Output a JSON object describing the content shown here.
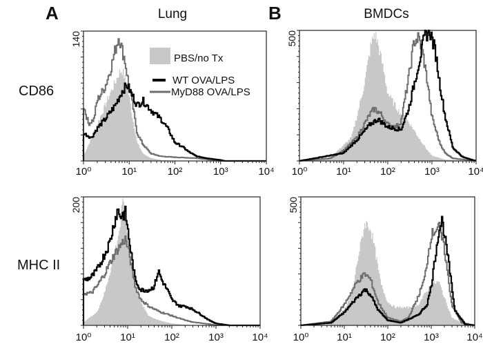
{
  "figure": {
    "panel_labels": [
      "A",
      "B"
    ],
    "column_titles": [
      "Lung",
      "BMDCs"
    ],
    "row_labels": [
      "CD86",
      "MHC II"
    ],
    "legend": [
      {
        "label": "PBS/no Tx",
        "style": "fill",
        "color": "#c8c8c8"
      },
      {
        "label": "WT OVA/LPS",
        "style": "line",
        "color": "#000000"
      },
      {
        "label": "MyD88 OVA/LPS",
        "style": "line",
        "color": "#6e6e6e"
      }
    ]
  },
  "chart_data": [
    {
      "type": "area",
      "panel": "A",
      "row": "CD86",
      "title": "Lung",
      "x_scale": "log",
      "xlim": [
        1,
        10000
      ],
      "x_tick_labels": [
        "10⁰",
        "10¹",
        "10²",
        "10³",
        "10⁴"
      ],
      "ylim": [
        0,
        140
      ],
      "y_tick_label": "140",
      "series": [
        {
          "name": "PBS/no Tx",
          "points": [
            [
              1,
              5
            ],
            [
              1.5,
              25
            ],
            [
              2,
              40
            ],
            [
              3,
              60
            ],
            [
              4,
              75
            ],
            [
              5,
              85
            ],
            [
              6,
              95
            ],
            [
              7,
              98
            ],
            [
              8,
              90
            ],
            [
              10,
              70
            ],
            [
              12,
              45
            ],
            [
              15,
              20
            ],
            [
              20,
              8
            ],
            [
              30,
              3
            ],
            [
              50,
              1
            ],
            [
              100,
              0
            ],
            [
              10000,
              0
            ]
          ]
        },
        {
          "name": "WT OVA/LPS",
          "points": [
            [
              1,
              30
            ],
            [
              1.5,
              25
            ],
            [
              2,
              35
            ],
            [
              3,
              45
            ],
            [
              5,
              60
            ],
            [
              7,
              75
            ],
            [
              9,
              82
            ],
            [
              12,
              70
            ],
            [
              15,
              60
            ],
            [
              20,
              65
            ],
            [
              30,
              55
            ],
            [
              50,
              45
            ],
            [
              70,
              35
            ],
            [
              100,
              20
            ],
            [
              150,
              15
            ],
            [
              200,
              10
            ],
            [
              300,
              5
            ],
            [
              500,
              3
            ],
            [
              1000,
              1
            ],
            [
              1200,
              0
            ],
            [
              10000,
              0
            ]
          ]
        },
        {
          "name": "MyD88 OVA/LPS",
          "points": [
            [
              1,
              60
            ],
            [
              1.3,
              40
            ],
            [
              1.7,
              45
            ],
            [
              2,
              65
            ],
            [
              3,
              80
            ],
            [
              4,
              100
            ],
            [
              5,
              120
            ],
            [
              6,
              135
            ],
            [
              7,
              120
            ],
            [
              8,
              110
            ],
            [
              10,
              80
            ],
            [
              12,
              60
            ],
            [
              15,
              30
            ],
            [
              20,
              18
            ],
            [
              30,
              8
            ],
            [
              50,
              5
            ],
            [
              100,
              4
            ],
            [
              300,
              3
            ],
            [
              1000,
              0
            ],
            [
              10000,
              0
            ]
          ]
        }
      ]
    },
    {
      "type": "area",
      "panel": "B",
      "row": "CD86",
      "title": "BMDCs",
      "x_scale": "log",
      "xlim": [
        1,
        10000
      ],
      "x_tick_labels": [
        "10⁰",
        "10¹",
        "10²",
        "10³",
        "10⁴"
      ],
      "ylim": [
        0,
        500
      ],
      "y_tick_label": "500",
      "series": [
        {
          "name": "PBS/no Tx",
          "points": [
            [
              1,
              0
            ],
            [
              3,
              5
            ],
            [
              5,
              15
            ],
            [
              10,
              60
            ],
            [
              15,
              90
            ],
            [
              20,
              170
            ],
            [
              30,
              300
            ],
            [
              40,
              430
            ],
            [
              50,
              490
            ],
            [
              60,
              450
            ],
            [
              80,
              350
            ],
            [
              100,
              260
            ],
            [
              150,
              210
            ],
            [
              200,
              180
            ],
            [
              300,
              150
            ],
            [
              500,
              90
            ],
            [
              800,
              40
            ],
            [
              1000,
              20
            ],
            [
              2000,
              5
            ],
            [
              10000,
              0
            ]
          ]
        },
        {
          "name": "WT OVA/LPS",
          "points": [
            [
              1,
              0
            ],
            [
              10,
              30
            ],
            [
              20,
              80
            ],
            [
              40,
              140
            ],
            [
              60,
              160
            ],
            [
              100,
              130
            ],
            [
              200,
              120
            ],
            [
              300,
              200
            ],
            [
              500,
              370
            ],
            [
              700,
              480
            ],
            [
              900,
              500
            ],
            [
              1200,
              420
            ],
            [
              1500,
              300
            ],
            [
              2000,
              170
            ],
            [
              3000,
              50
            ],
            [
              5000,
              15
            ],
            [
              10000,
              0
            ]
          ]
        },
        {
          "name": "MyD88 OVA/LPS",
          "points": [
            [
              1,
              0
            ],
            [
              5,
              10
            ],
            [
              10,
              40
            ],
            [
              20,
              90
            ],
            [
              40,
              180
            ],
            [
              50,
              200
            ],
            [
              70,
              180
            ],
            [
              100,
              140
            ],
            [
              150,
              130
            ],
            [
              200,
              150
            ],
            [
              300,
              320
            ],
            [
              400,
              460
            ],
            [
              500,
              470
            ],
            [
              600,
              430
            ],
            [
              800,
              300
            ],
            [
              1000,
              170
            ],
            [
              1500,
              70
            ],
            [
              2000,
              30
            ],
            [
              3000,
              10
            ],
            [
              10000,
              0
            ]
          ]
        }
      ]
    },
    {
      "type": "area",
      "panel": "A",
      "row": "MHC II",
      "title": "Lung",
      "x_scale": "log",
      "xlim": [
        1,
        10000
      ],
      "x_tick_labels": [
        "10⁰",
        "10¹",
        "10²",
        "10³",
        "10⁴"
      ],
      "ylim": [
        0,
        200
      ],
      "y_tick_label": "200",
      "series": [
        {
          "name": "PBS/no Tx",
          "points": [
            [
              1,
              5
            ],
            [
              2,
              20
            ],
            [
              3,
              50
            ],
            [
              5,
              110
            ],
            [
              7,
              160
            ],
            [
              8,
              200
            ],
            [
              10,
              140
            ],
            [
              12,
              100
            ],
            [
              15,
              60
            ],
            [
              20,
              35
            ],
            [
              30,
              15
            ],
            [
              50,
              8
            ],
            [
              100,
              3
            ],
            [
              300,
              0
            ],
            [
              10000,
              0
            ]
          ]
        },
        {
          "name": "WT OVA/LPS",
          "points": [
            [
              1,
              70
            ],
            [
              1.5,
              75
            ],
            [
              2,
              85
            ],
            [
              3,
              110
            ],
            [
              4,
              130
            ],
            [
              5,
              160
            ],
            [
              6,
              180
            ],
            [
              7,
              170
            ],
            [
              9,
              175
            ],
            [
              11,
              130
            ],
            [
              15,
              70
            ],
            [
              20,
              55
            ],
            [
              30,
              55
            ],
            [
              40,
              60
            ],
            [
              50,
              85
            ],
            [
              60,
              70
            ],
            [
              80,
              55
            ],
            [
              100,
              40
            ],
            [
              150,
              30
            ],
            [
              200,
              30
            ],
            [
              300,
              25
            ],
            [
              500,
              15
            ],
            [
              700,
              8
            ],
            [
              1000,
              3
            ],
            [
              2000,
              0
            ],
            [
              10000,
              0
            ]
          ]
        },
        {
          "name": "MyD88 OVA/LPS",
          "points": [
            [
              1,
              50
            ],
            [
              1.5,
              50
            ],
            [
              2,
              60
            ],
            [
              3,
              80
            ],
            [
              5,
              110
            ],
            [
              7,
              125
            ],
            [
              9,
              135
            ],
            [
              11,
              110
            ],
            [
              15,
              60
            ],
            [
              20,
              40
            ],
            [
              30,
              30
            ],
            [
              50,
              22
            ],
            [
              100,
              15
            ],
            [
              200,
              8
            ],
            [
              300,
              5
            ],
            [
              700,
              2
            ],
            [
              1000,
              0
            ],
            [
              10000,
              0
            ]
          ]
        }
      ]
    },
    {
      "type": "area",
      "panel": "B",
      "row": "MHC II",
      "title": "BMDCs",
      "x_scale": "log",
      "xlim": [
        1,
        10000
      ],
      "x_tick_labels": [
        "10⁰",
        "10¹",
        "10²",
        "10³",
        "10⁴"
      ],
      "ylim": [
        0,
        500
      ],
      "y_tick_label": "500",
      "series": [
        {
          "name": "PBS/no Tx",
          "points": [
            [
              1,
              0
            ],
            [
              3,
              5
            ],
            [
              5,
              20
            ],
            [
              10,
              60
            ],
            [
              15,
              120
            ],
            [
              20,
              250
            ],
            [
              30,
              400
            ],
            [
              40,
              380
            ],
            [
              50,
              300
            ],
            [
              70,
              160
            ],
            [
              100,
              90
            ],
            [
              150,
              70
            ],
            [
              200,
              70
            ],
            [
              300,
              70
            ],
            [
              500,
              80
            ],
            [
              700,
              120
            ],
            [
              1000,
              160
            ],
            [
              1500,
              170
            ],
            [
              2000,
              110
            ],
            [
              3000,
              30
            ],
            [
              5000,
              10
            ],
            [
              10000,
              0
            ]
          ]
        },
        {
          "name": "WT OVA/LPS",
          "points": [
            [
              1,
              0
            ],
            [
              5,
              10
            ],
            [
              10,
              50
            ],
            [
              20,
              110
            ],
            [
              30,
              140
            ],
            [
              40,
              120
            ],
            [
              60,
              60
            ],
            [
              100,
              20
            ],
            [
              200,
              10
            ],
            [
              500,
              40
            ],
            [
              800,
              80
            ],
            [
              1000,
              150
            ],
            [
              1500,
              370
            ],
            [
              1800,
              410
            ],
            [
              2500,
              250
            ],
            [
              3500,
              60
            ],
            [
              6000,
              5
            ],
            [
              10000,
              0
            ]
          ]
        },
        {
          "name": "MyD88 OVA/LPS",
          "points": [
            [
              1,
              0
            ],
            [
              5,
              15
            ],
            [
              10,
              80
            ],
            [
              20,
              170
            ],
            [
              30,
              200
            ],
            [
              40,
              180
            ],
            [
              60,
              90
            ],
            [
              100,
              30
            ],
            [
              200,
              15
            ],
            [
              300,
              30
            ],
            [
              500,
              110
            ],
            [
              700,
              180
            ],
            [
              1000,
              350
            ],
            [
              1500,
              390
            ],
            [
              2000,
              300
            ],
            [
              3000,
              80
            ],
            [
              5000,
              10
            ],
            [
              10000,
              0
            ]
          ]
        }
      ]
    }
  ]
}
